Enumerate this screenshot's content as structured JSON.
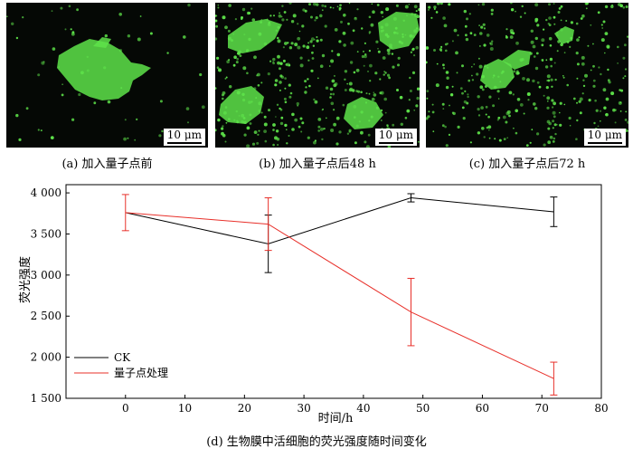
{
  "panels": [
    {
      "caption": "(a) 加入量子点前",
      "scale": "10 μm"
    },
    {
      "caption": "(b) 加入量子点后48 h",
      "scale": "10 μm"
    },
    {
      "caption": "(c) 加入量子点后72 h",
      "scale": "10 μm"
    }
  ],
  "colors": {
    "ck": "#000000",
    "qd": "#e8302a",
    "cell": "#5ee34a",
    "bg": "#050805"
  },
  "chart_data": {
    "type": "line",
    "xlabel": "时间/h",
    "ylabel": "荧光强度",
    "xlim": [
      -10,
      80
    ],
    "ylim": [
      1500,
      4100
    ],
    "xticks": [
      0,
      10,
      20,
      30,
      40,
      50,
      60,
      70,
      80
    ],
    "xtick_labels": [
      "0",
      "10",
      "20",
      "30",
      "40",
      "50",
      "60",
      "70",
      "80"
    ],
    "yticks": [
      1500,
      2000,
      2500,
      3000,
      3500,
      4000
    ],
    "ytick_labels": [
      "1 500",
      "2 000",
      "2 500",
      "3 000",
      "3 500",
      "4 000"
    ],
    "legend": "bottom-left",
    "series": [
      {
        "name": "CK",
        "x": [
          0,
          24,
          48,
          72
        ],
        "y": [
          3760,
          3380,
          3940,
          3770
        ],
        "err": [
          0,
          350,
          50,
          180
        ]
      },
      {
        "name": "量子点处理",
        "x": [
          0,
          24,
          48,
          72
        ],
        "y": [
          3760,
          3620,
          2550,
          1740
        ],
        "err": [
          220,
          320,
          410,
          200
        ]
      }
    ],
    "caption": "(d) 生物膜中活细胞的荧光强度随时间变化"
  }
}
